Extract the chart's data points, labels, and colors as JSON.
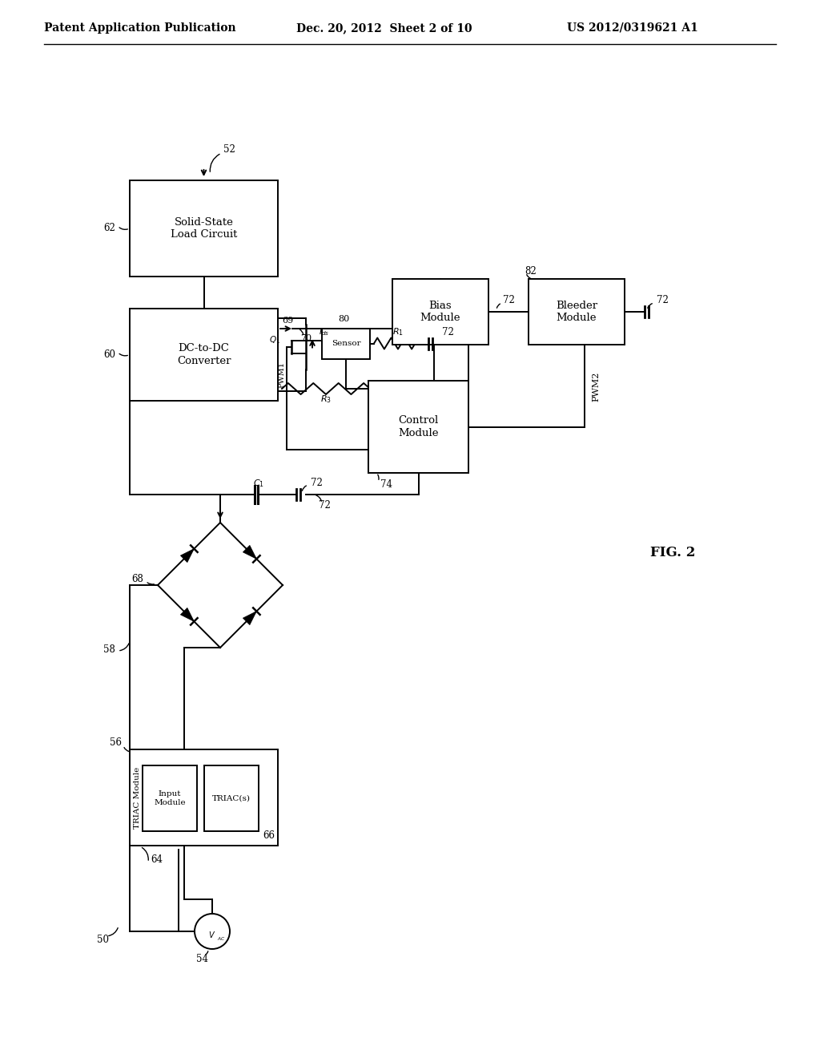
{
  "bg_color": "#ffffff",
  "line_color": "#000000",
  "header_left": "Patent Application Publication",
  "header_mid": "Dec. 20, 2012  Sheet 2 of 10",
  "header_right": "US 2012/0319621 A1",
  "fig_label": "FIG. 2"
}
